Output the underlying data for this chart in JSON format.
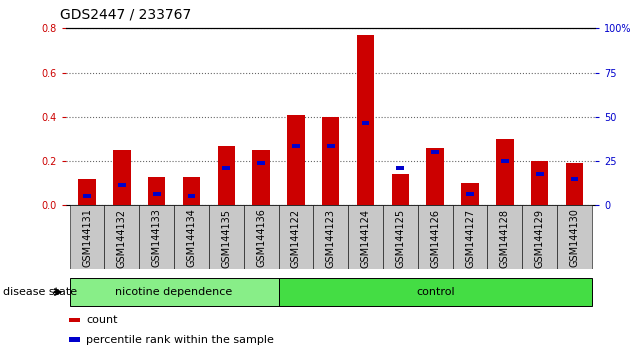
{
  "title": "GDS2447 / 233767",
  "categories": [
    "GSM144131",
    "GSM144132",
    "GSM144133",
    "GSM144134",
    "GSM144135",
    "GSM144136",
    "GSM144122",
    "GSM144123",
    "GSM144124",
    "GSM144125",
    "GSM144126",
    "GSM144127",
    "GSM144128",
    "GSM144129",
    "GSM144130"
  ],
  "count_values": [
    0.12,
    0.25,
    0.13,
    0.13,
    0.27,
    0.25,
    0.41,
    0.4,
    0.77,
    0.14,
    0.26,
    0.1,
    0.3,
    0.2,
    0.19
  ],
  "percentile_values": [
    0.04,
    0.09,
    0.05,
    0.04,
    0.17,
    0.19,
    0.27,
    0.27,
    0.37,
    0.17,
    0.24,
    0.05,
    0.2,
    0.14,
    0.12
  ],
  "count_color": "#cc0000",
  "percentile_color": "#0000cc",
  "ylim_left": [
    0,
    0.8
  ],
  "ylim_right": [
    0,
    100
  ],
  "yticks_left": [
    0,
    0.2,
    0.4,
    0.6,
    0.8
  ],
  "yticks_right": [
    0,
    25,
    50,
    75,
    100
  ],
  "ytick_right_labels": [
    "0",
    "25",
    "50",
    "75",
    "100%"
  ],
  "groups": [
    {
      "label": "nicotine dependence",
      "start": 0,
      "end": 6,
      "color": "#88ee88"
    },
    {
      "label": "control",
      "start": 6,
      "end": 15,
      "color": "#44dd44"
    }
  ],
  "group_label": "disease state",
  "legend_items": [
    {
      "label": "count",
      "color": "#cc0000"
    },
    {
      "label": "percentile rank within the sample",
      "color": "#0000cc"
    }
  ],
  "bar_width": 0.5,
  "title_fontsize": 10,
  "tick_fontsize": 7,
  "legend_fontsize": 8
}
